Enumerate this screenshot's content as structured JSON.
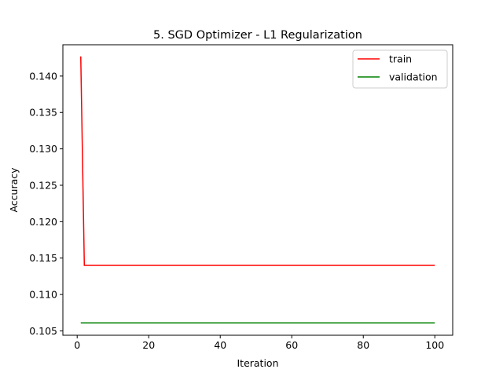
{
  "chart_data": {
    "type": "line",
    "title": "5. SGD Optimizer - L1 Regularization",
    "xlabel": "Iteration",
    "ylabel": "Accuracy",
    "xlim": [
      -4,
      105
    ],
    "ylim": [
      0.1044,
      0.1443
    ],
    "xticks": [
      0,
      20,
      40,
      60,
      80,
      100
    ],
    "yticks": [
      0.105,
      0.11,
      0.115,
      0.12,
      0.125,
      0.13,
      0.135,
      0.14
    ],
    "ytick_labels": [
      "0.105",
      "0.110",
      "0.115",
      "0.120",
      "0.125",
      "0.130",
      "0.135",
      "0.140"
    ],
    "grid": false,
    "legend_position": "upper-right",
    "series": [
      {
        "name": "train",
        "color": "#ff0000",
        "points": [
          [
            1,
            0.1427
          ],
          [
            2,
            0.114
          ],
          [
            100,
            0.114
          ]
        ]
      },
      {
        "name": "validation",
        "color": "#008000",
        "points": [
          [
            1,
            0.1061
          ],
          [
            100,
            0.1061
          ]
        ]
      }
    ]
  }
}
